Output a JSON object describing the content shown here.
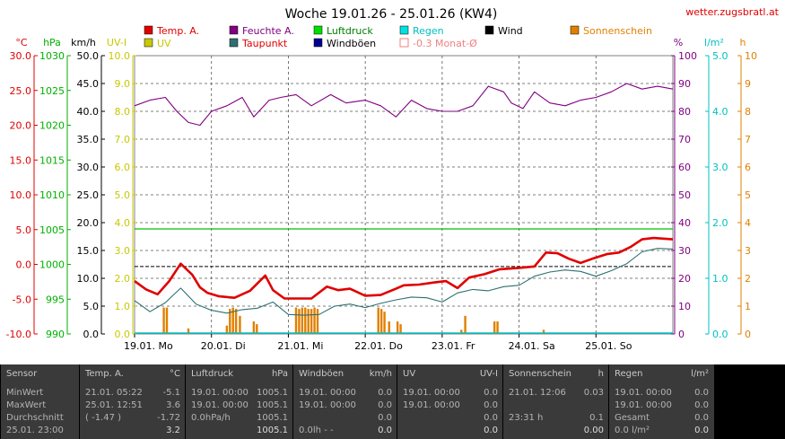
{
  "chart_data": {
    "type": "line",
    "title": "Woche 19.01.26 - 25.01.26 (KW4)",
    "site": "wetter.zugsbratl.at",
    "x_tick_labels": [
      "19.01. Mo",
      "20.01. Di",
      "21.01. Mi",
      "22.01. Do",
      "23.01. Fr",
      "24.01. Sa",
      "25.01. So"
    ],
    "axes": {
      "temp": {
        "unit": "°C",
        "range": [
          -10,
          30
        ],
        "ticks": [
          "30.0",
          "25.0",
          "20.0",
          "15.0",
          "10.0",
          "5.0",
          "0.0",
          "-5.0",
          "-10.0"
        ],
        "color": "#e00000"
      },
      "pressure": {
        "unit": "hPa",
        "range": [
          990,
          1030
        ],
        "ticks": [
          "1030",
          "1025",
          "1020",
          "1015",
          "1010",
          "1005",
          "1000",
          "995",
          "990"
        ],
        "color": "#00b000"
      },
      "wind": {
        "unit": "km/h",
        "range": [
          0,
          50
        ],
        "ticks": [
          "50.0",
          "45.0",
          "40.0",
          "35.0",
          "30.0",
          "25.0",
          "20.0",
          "15.0",
          "10.0",
          "5.0",
          "0.0"
        ],
        "color": "#000000"
      },
      "uv": {
        "unit": "UV-I",
        "range": [
          0,
          10
        ],
        "ticks": [
          "10.0",
          "9.0",
          "8.0",
          "7.0",
          "6.0",
          "5.0",
          "4.0",
          "3.0",
          "2.0",
          "1.0",
          "0.0"
        ],
        "color": "#c8c800"
      },
      "humidity": {
        "unit": "%",
        "range": [
          0,
          100
        ],
        "ticks": [
          "100",
          "90",
          "80",
          "70",
          "60",
          "50",
          "40",
          "30",
          "20",
          "10",
          "0"
        ],
        "color": "#800080"
      },
      "rain": {
        "unit": "l/m²",
        "range": [
          0,
          5
        ],
        "ticks": [
          "5.0",
          "4.0",
          "3.0",
          "2.0",
          "1.0",
          "0.0"
        ],
        "color": "#00c0c0"
      },
      "sun": {
        "unit": "h",
        "range": [
          0,
          10
        ],
        "ticks": [
          "10",
          "9",
          "8",
          "7",
          "6",
          "5",
          "4",
          "3",
          "2",
          "1",
          "0"
        ],
        "color": "#e08000"
      }
    },
    "legend": [
      {
        "label": "Temp. A.",
        "color": "#e00000",
        "style": "fill"
      },
      {
        "label": "Feuchte A.",
        "color": "#800080",
        "style": "fill"
      },
      {
        "label": "Luftdruck",
        "color": "#00e000",
        "style": "fill"
      },
      {
        "label": "Regen",
        "color": "#00e0e0",
        "style": "fill"
      },
      {
        "label": "Wind",
        "color": "#000000",
        "style": "fill"
      },
      {
        "label": "Sonnenschein",
        "color": "#e08000",
        "style": "fill"
      },
      {
        "label": "UV",
        "color": "#c8c800",
        "style": "fill"
      },
      {
        "label": "Taupunkt",
        "color": "#2e7070",
        "style": "fill"
      },
      {
        "label": "Windböen",
        "color": "#000090",
        "style": "fill"
      },
      {
        "label": "-0.3 Monat-Ø",
        "color": "#f08080",
        "style": "outline"
      }
    ],
    "x_range_days": [
      0,
      7
    ],
    "month_avg_temp": -0.3,
    "series": [
      {
        "name": "Temp. A.",
        "axis": "temp",
        "color": "#e00000",
        "x": [
          0,
          0.15,
          0.3,
          0.45,
          0.6,
          0.75,
          0.85,
          0.95,
          1.1,
          1.3,
          1.5,
          1.7,
          1.8,
          1.95,
          2.1,
          2.3,
          2.5,
          2.65,
          2.8,
          3.0,
          3.2,
          3.4,
          3.5,
          3.7,
          3.9,
          4.05,
          4.2,
          4.35,
          4.55,
          4.75,
          5.0,
          5.2,
          5.35,
          5.5,
          5.65,
          5.8,
          5.95,
          6.15,
          6.3,
          6.45,
          6.6,
          6.75,
          7.0
        ],
        "y": [
          -2.4,
          -3.6,
          -4.3,
          -2.4,
          0.1,
          -1.5,
          -3.3,
          -4.1,
          -4.6,
          -4.8,
          -3.8,
          -1.6,
          -3.7,
          -4.9,
          -4.9,
          -4.9,
          -3.2,
          -3.7,
          -3.5,
          -4.5,
          -4.4,
          -3.5,
          -3.0,
          -2.9,
          -2.6,
          -2.4,
          -3.4,
          -1.9,
          -1.4,
          -0.7,
          -0.5,
          -0.3,
          1.7,
          1.6,
          0.8,
          0.2,
          0.8,
          1.5,
          1.7,
          2.5,
          3.6,
          3.8,
          3.6
        ]
      },
      {
        "name": "Taupunkt",
        "axis": "temp",
        "color": "#2e7070",
        "x": [
          0,
          0.2,
          0.4,
          0.6,
          0.8,
          1.0,
          1.2,
          1.4,
          1.6,
          1.8,
          2.0,
          2.2,
          2.4,
          2.6,
          2.8,
          3.0,
          3.2,
          3.4,
          3.6,
          3.8,
          4.0,
          4.2,
          4.4,
          4.6,
          4.8,
          5.0,
          5.2,
          5.4,
          5.6,
          5.8,
          6.0,
          6.2,
          6.4,
          6.6,
          6.8,
          7.0
        ],
        "y": [
          -5.2,
          -6.8,
          -5.5,
          -3.4,
          -5.7,
          -6.6,
          -7.0,
          -6.5,
          -6.3,
          -5.4,
          -7.2,
          -7.3,
          -7.2,
          -6.0,
          -5.7,
          -6.2,
          -5.6,
          -5.1,
          -4.7,
          -4.8,
          -5.4,
          -4.1,
          -3.6,
          -3.8,
          -3.2,
          -3.0,
          -1.7,
          -1.1,
          -0.8,
          -1.0,
          -1.7,
          -0.9,
          0.1,
          1.8,
          2.3,
          2.2
        ]
      },
      {
        "name": "Feuchte A.",
        "axis": "humidity",
        "color": "#800080",
        "x": [
          0,
          0.2,
          0.4,
          0.55,
          0.7,
          0.85,
          1.0,
          1.2,
          1.4,
          1.55,
          1.75,
          1.9,
          2.1,
          2.3,
          2.55,
          2.75,
          3.0,
          3.2,
          3.4,
          3.6,
          3.8,
          4.0,
          4.2,
          4.4,
          4.6,
          4.8,
          4.9,
          5.05,
          5.2,
          5.4,
          5.6,
          5.8,
          6.0,
          6.2,
          6.4,
          6.6,
          6.8,
          7.0
        ],
        "y": [
          82,
          84,
          85,
          80,
          76,
          75,
          80,
          82,
          85,
          78,
          84,
          85,
          86,
          82,
          86,
          83,
          84,
          82,
          78,
          84,
          81,
          80,
          80,
          82,
          89,
          87,
          83,
          81,
          87,
          83,
          82,
          84,
          85,
          87,
          90,
          88,
          89,
          88
        ]
      },
      {
        "name": "Luftdruck",
        "axis": "pressure",
        "color": "#00c000",
        "x": [
          0,
          7
        ],
        "y": [
          1005.1,
          1005.1
        ]
      }
    ],
    "sun_bars": [
      {
        "x": 0.38,
        "v": 0.95
      },
      {
        "x": 0.42,
        "v": 0.95
      },
      {
        "x": 0.7,
        "v": 0.2
      },
      {
        "x": 1.2,
        "v": 0.3
      },
      {
        "x": 1.24,
        "v": 0.9
      },
      {
        "x": 1.28,
        "v": 0.95
      },
      {
        "x": 1.32,
        "v": 0.9
      },
      {
        "x": 1.37,
        "v": 0.65
      },
      {
        "x": 1.55,
        "v": 0.45
      },
      {
        "x": 1.59,
        "v": 0.35
      },
      {
        "x": 2.1,
        "v": 0.95
      },
      {
        "x": 2.14,
        "v": 0.9
      },
      {
        "x": 2.18,
        "v": 0.95
      },
      {
        "x": 2.22,
        "v": 0.95
      },
      {
        "x": 2.26,
        "v": 0.9
      },
      {
        "x": 2.3,
        "v": 0.9
      },
      {
        "x": 2.34,
        "v": 0.95
      },
      {
        "x": 2.38,
        "v": 0.9
      },
      {
        "x": 3.17,
        "v": 0.95
      },
      {
        "x": 3.21,
        "v": 0.9
      },
      {
        "x": 3.25,
        "v": 0.8
      },
      {
        "x": 3.31,
        "v": 0.45
      },
      {
        "x": 3.42,
        "v": 0.45
      },
      {
        "x": 3.46,
        "v": 0.35
      },
      {
        "x": 4.25,
        "v": 0.15
      },
      {
        "x": 4.3,
        "v": 0.65
      },
      {
        "x": 4.68,
        "v": 0.45
      },
      {
        "x": 4.72,
        "v": 0.45
      },
      {
        "x": 5.32,
        "v": 0.15
      }
    ],
    "rain_line": 0.0,
    "grid": true
  },
  "stats_table": {
    "columns": [
      {
        "title": "Sensor",
        "unit": ""
      },
      {
        "title": "Temp. A.",
        "unit": "°C"
      },
      {
        "title": "Luftdruck",
        "unit": "hPa"
      },
      {
        "title": "Windböen",
        "unit": "km/h"
      },
      {
        "title": "UV",
        "unit": "UV-I"
      },
      {
        "title": "Sonnenschein",
        "unit": "h"
      },
      {
        "title": "Regen",
        "unit": "l/m²"
      }
    ],
    "rows": [
      {
        "label": "MinWert",
        "temp": "21.01. 05:22",
        "temp_v": "-5.1",
        "press": "19.01. 00:00",
        "press_v": "1005.1",
        "wind": "19.01. 00:00",
        "wind_v": "0.0",
        "uv": "19.01. 00:00",
        "uv_v": "0.0",
        "sun": "21.01. 12:06",
        "sun_v": "0.03",
        "rain": "19.01. 00:00",
        "rain_v": "0.0"
      },
      {
        "label": "MaxWert",
        "temp": "25.01. 12:51",
        "temp_v": "3.6",
        "press": "19.01. 00:00",
        "press_v": "1005.1",
        "wind": "19.01. 00:00",
        "wind_v": "0.0",
        "uv": "19.01. 00:00",
        "uv_v": "0.0",
        "sun": "",
        "sun_v": "",
        "rain": "19.01. 00:00",
        "rain_v": "0.0"
      },
      {
        "label": "Durchschnitt",
        "temp": "( -1.47 )",
        "temp_v": "-1.72",
        "press": "0.0hPa/h",
        "press_v": "1005.1",
        "wind": "",
        "wind_v": "0.0",
        "uv": "",
        "uv_v": "0.0",
        "sun": "23:31 h",
        "sun_v": "0.1",
        "rain": "Gesamt",
        "rain_v": "0.0"
      },
      {
        "label": "25.01. 23:00",
        "temp": "",
        "temp_v": "3.2",
        "press": "",
        "press_v": "1005.1",
        "wind": "0.0lh - -",
        "wind_v": "0.0",
        "uv": "",
        "uv_v": "0.0",
        "sun": "",
        "sun_v": "0.00",
        "rain": "0.0 l/m²",
        "rain_v": "0.0"
      }
    ]
  }
}
